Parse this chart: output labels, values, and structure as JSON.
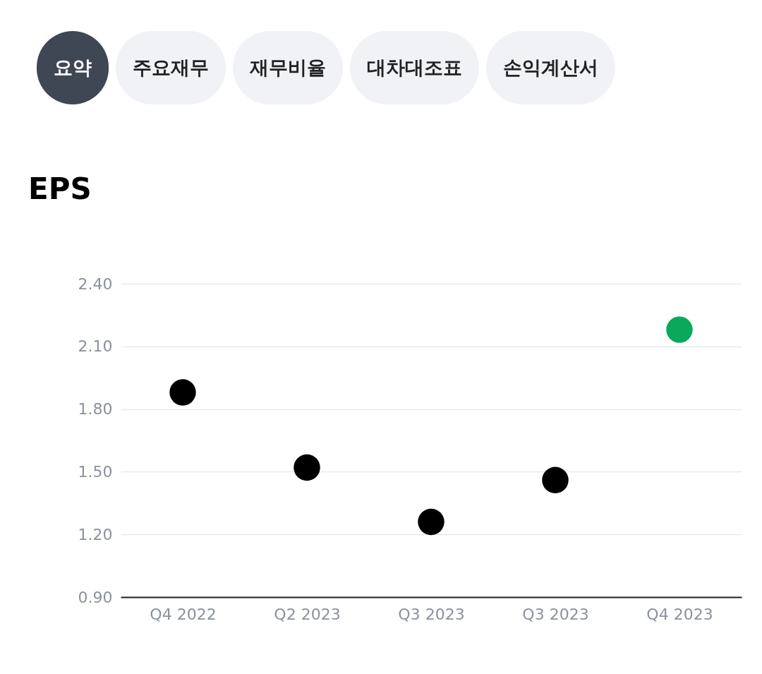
{
  "chart_data": {
    "type": "scatter",
    "title": "EPS",
    "annotations": [
      "요약",
      "주요재무",
      "재무비율",
      "대차대조표",
      "손익계산서"
    ],
    "categories": [
      "Q4 2022",
      "Q2 2023",
      "Q3 2023",
      "Q3 2023",
      "Q4 2023"
    ],
    "values": [
      1.88,
      1.52,
      1.26,
      1.46,
      2.18
    ],
    "colors": [
      "#000000",
      "#000000",
      "#000000",
      "#000000",
      "#0aa85a"
    ],
    "ylim": [
      0.9,
      2.4
    ],
    "yticks": [
      {
        "value": 0.9,
        "label": "0.90"
      },
      {
        "value": 1.2,
        "label": "1.20"
      },
      {
        "value": 1.5,
        "label": "1.50"
      },
      {
        "value": 1.8,
        "label": "1.80"
      },
      {
        "value": 2.1,
        "label": "2.10"
      },
      {
        "value": 2.4,
        "label": "2.40"
      }
    ],
    "grid": "y",
    "marker": "circle"
  }
}
